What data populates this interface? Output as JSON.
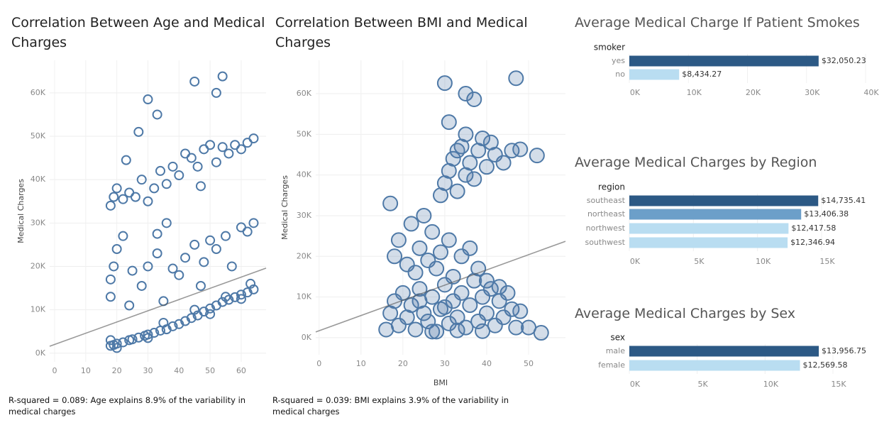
{
  "chart_data": [
    {
      "type": "scatter",
      "title": "Correlation Between Age and Medical Charges",
      "ylabel": "Medical Charges",
      "note": "R-squared = 0.089: Age explains 8.9% of the variability in medical charges",
      "color": "#4e79a7",
      "xlim": [
        -1.6,
        68
      ],
      "ylim": [
        -2000,
        67500
      ],
      "xticks": [
        0,
        10,
        20,
        30,
        40,
        50,
        60
      ],
      "yticks": [
        {
          "value": 0,
          "label": "0K"
        },
        {
          "value": 10000,
          "label": "10K"
        },
        {
          "value": 20000,
          "label": "20K"
        },
        {
          "value": 30000,
          "label": "30K"
        },
        {
          "value": 40000,
          "label": "40K"
        },
        {
          "value": 50000,
          "label": "50K"
        },
        {
          "value": 60000,
          "label": "60K"
        }
      ],
      "trend": {
        "x": [
          -1.6,
          68
        ],
        "values": [
          1600,
          19600
        ]
      },
      "x": [
        18,
        19,
        20,
        22,
        24,
        25,
        27,
        29,
        30,
        32,
        34,
        36,
        38,
        40,
        42,
        44,
        46,
        48,
        50,
        52,
        54,
        56,
        58,
        60,
        62,
        64,
        18,
        35,
        45,
        55,
        63,
        20,
        30,
        50,
        60,
        18,
        18,
        19,
        20,
        22,
        25,
        28,
        30,
        33,
        35,
        38,
        40,
        42,
        45,
        48,
        50,
        52,
        55,
        57,
        60,
        62,
        64,
        24,
        33,
        47,
        18,
        19,
        20,
        22,
        24,
        26,
        28,
        30,
        32,
        34,
        36,
        38,
        40,
        42,
        44,
        46,
        48,
        50,
        52,
        54,
        56,
        58,
        60,
        62,
        64,
        23,
        27,
        30,
        33,
        45,
        52,
        54,
        36,
        47
      ],
      "values": [
        1700,
        1900,
        2200,
        2500,
        3000,
        3200,
        3600,
        4000,
        4300,
        4700,
        5200,
        5500,
        6200,
        6700,
        7400,
        8100,
        8700,
        9600,
        10300,
        11000,
        11800,
        12300,
        12900,
        13500,
        14000,
        14700,
        3000,
        7000,
        10000,
        13000,
        16000,
        1200,
        3500,
        9000,
        12500,
        13000,
        17000,
        20000,
        24000,
        27000,
        19000,
        15500,
        20000,
        23000,
        12000,
        19500,
        18000,
        22000,
        25000,
        21000,
        26000,
        24000,
        27000,
        20000,
        29000,
        28000,
        30000,
        11000,
        27500,
        15500,
        34000,
        36000,
        38000,
        35500,
        37000,
        36000,
        40000,
        35000,
        38000,
        42000,
        39000,
        43000,
        41000,
        46000,
        45000,
        43000,
        47000,
        48000,
        44000,
        47500,
        46000,
        48000,
        47000,
        48500,
        49500,
        44500,
        51000,
        58500,
        55000,
        62600,
        60000,
        63800,
        30000,
        38500
      ]
    },
    {
      "type": "scatter",
      "title": "Correlation Between BMI and Medical Charges",
      "ylabel": "Medical Charges",
      "xlabel": "BMI",
      "note": "R-squared = 0.039: BMI explains 3.9% of the variability in medical charges",
      "color": "#4e79a7",
      "xlim": [
        -0.8,
        58.8
      ],
      "ylim": [
        -4200,
        68200
      ],
      "xticks": [
        0,
        10,
        20,
        30,
        40,
        50
      ],
      "yticks": [
        {
          "value": 0,
          "label": "0K"
        },
        {
          "value": 10000,
          "label": "10K"
        },
        {
          "value": 20000,
          "label": "20K"
        },
        {
          "value": 30000,
          "label": "30K"
        },
        {
          "value": 40000,
          "label": "40K"
        },
        {
          "value": 50000,
          "label": "50K"
        },
        {
          "value": 60000,
          "label": "60K"
        }
      ],
      "trend": {
        "x": [
          -0.8,
          58.8
        ],
        "values": [
          1400,
          23700
        ]
      },
      "x": [
        16,
        17,
        18,
        19,
        20,
        21,
        22,
        23,
        24,
        25,
        26,
        27,
        28,
        29,
        30,
        31,
        32,
        33,
        34,
        35,
        36,
        37,
        38,
        39,
        40,
        41,
        42,
        43,
        44,
        45,
        46,
        47,
        48,
        50,
        53,
        27,
        33,
        39,
        24,
        30,
        17,
        18,
        19,
        21,
        22,
        23,
        24,
        25,
        26,
        27,
        28,
        29,
        31,
        32,
        34,
        36,
        38,
        40,
        43,
        29,
        30,
        31,
        32,
        33,
        34,
        35,
        36,
        37,
        38,
        39,
        40,
        41,
        42,
        44,
        46,
        48,
        52,
        30,
        35,
        37,
        35,
        47,
        31,
        33
      ],
      "values": [
        2000,
        6000,
        9000,
        3000,
        11000,
        5000,
        8000,
        2000,
        12000,
        6000,
        4000,
        10000,
        1500,
        7000,
        13000,
        3500,
        9000,
        5000,
        11000,
        2500,
        8000,
        14000,
        4000,
        10000,
        6000,
        12000,
        3000,
        9000,
        5000,
        11000,
        7000,
        2500,
        6500,
        2500,
        1200,
        1500,
        1800,
        1600,
        9000,
        7500,
        33000,
        20000,
        24000,
        18000,
        28000,
        16000,
        22000,
        30000,
        19000,
        26000,
        17000,
        21000,
        24000,
        15000,
        20000,
        22000,
        17000,
        14000,
        12500,
        35000,
        38000,
        41000,
        44000,
        36000,
        47000,
        40000,
        43000,
        39000,
        46000,
        49000,
        42000,
        48000,
        45000,
        43000,
        46000,
        46300,
        44800,
        62600,
        60000,
        58600,
        50000,
        63800,
        53000,
        46000
      ]
    },
    {
      "type": "barh",
      "title": "Average Medical Charge If Patient Smokes",
      "category_label": "smoker",
      "categories": [
        "yes",
        "no"
      ],
      "values": [
        32050.23,
        8434.27
      ],
      "value_labels": [
        "$32,050.23",
        "$8,434.27"
      ],
      "colors": [
        "#2c5985",
        "#b9ddf1"
      ],
      "xlim": [
        0,
        40000
      ],
      "xticks": [
        {
          "value": 0,
          "label": "0K"
        },
        {
          "value": 10000,
          "label": "10K"
        },
        {
          "value": 20000,
          "label": "20K"
        },
        {
          "value": 30000,
          "label": "30K"
        },
        {
          "value": 40000,
          "label": "40K"
        }
      ]
    },
    {
      "type": "barh",
      "title": "Average Medical Charges by Region",
      "category_label": "region",
      "categories": [
        "southeast",
        "northeast",
        "northwest",
        "southwest"
      ],
      "values": [
        14735.41,
        13406.38,
        12417.58,
        12346.94
      ],
      "value_labels": [
        "$14,735.41",
        "$13,406.38",
        "$12,417.58",
        "$12,346.94"
      ],
      "colors": [
        "#2c5985",
        "#6c9fc9",
        "#b9ddf1",
        "#b9ddf1"
      ],
      "xlim": [
        0,
        15000
      ],
      "xticks": [
        {
          "value": 0,
          "label": "0K"
        },
        {
          "value": 5000,
          "label": "5K"
        },
        {
          "value": 10000,
          "label": "10K"
        },
        {
          "value": 15000,
          "label": "15K"
        }
      ]
    },
    {
      "type": "barh",
      "title": "Average Medical Charges by Sex",
      "category_label": "sex",
      "categories": [
        "male",
        "female"
      ],
      "values": [
        13956.75,
        12569.58
      ],
      "value_labels": [
        "$13,956.75",
        "$12,569.58"
      ],
      "colors": [
        "#2c5985",
        "#b9ddf1"
      ],
      "xlim": [
        0,
        15000
      ],
      "xticks": [
        {
          "value": 0,
          "label": "0K"
        },
        {
          "value": 5000,
          "label": "5K"
        },
        {
          "value": 10000,
          "label": "10K"
        },
        {
          "value": 15000,
          "label": "15K"
        }
      ]
    }
  ]
}
